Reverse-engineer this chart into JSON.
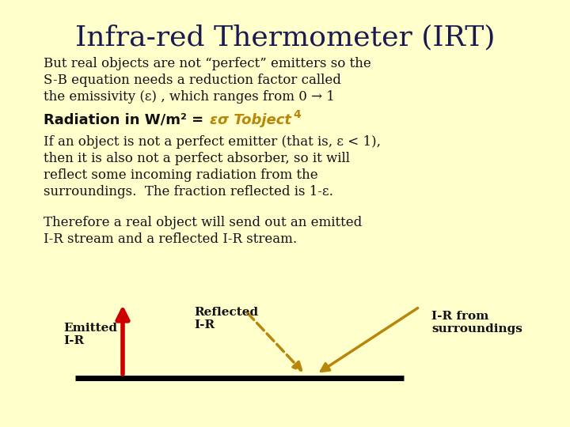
{
  "background_color": "#FFFFCC",
  "title": "Infra-red Thermometer (IRT)",
  "title_fontsize": 26,
  "title_color": "#1a1a4e",
  "body_color": "#111111",
  "body_fontsize": 12.0,
  "bold_fontsize": 13.0,
  "para1_lines": [
    "But real objects are not “perfect” emitters so the",
    "S-B equation needs a reduction factor called",
    "the emissivity (ε) , which ranges from 0 → 1"
  ],
  "para2_lines": [
    "If an object is not a perfect emitter (that is, ε < 1),",
    "then it is also not a perfect absorber, so it will",
    "reflect some incoming radiation from the",
    "surroundings.  The fraction reflected is 1-ε."
  ],
  "para3_lines": [
    "Therefore a real object will send out an emitted",
    "I-R stream and a reflected I-R stream."
  ],
  "label_emitted": "Emitted\nI-R",
  "label_reflected": "Reflected\nI-R",
  "label_surroundings": "I-R from\nsurroundings",
  "arrow_color_red": "#cc0000",
  "arrow_color_gold": "#b8860b"
}
